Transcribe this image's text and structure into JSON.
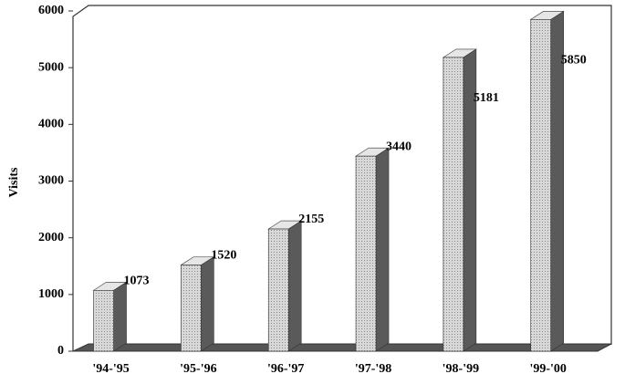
{
  "chart_data": {
    "type": "bar3d",
    "y_label": "Visits",
    "categories": [
      "'94-'95",
      "'95-'96",
      "'96-'97",
      "'97-'98",
      "'98-'99",
      "'99-'00"
    ],
    "values": [
      1073,
      1520,
      2155,
      3440,
      5181,
      5850
    ],
    "color": "#c8c8c8",
    "side_color": "#5a5a5a",
    "ylim": [
      0,
      6000
    ],
    "yticks": [
      0,
      1000,
      2000,
      3000,
      4000,
      5000,
      6000
    ]
  }
}
